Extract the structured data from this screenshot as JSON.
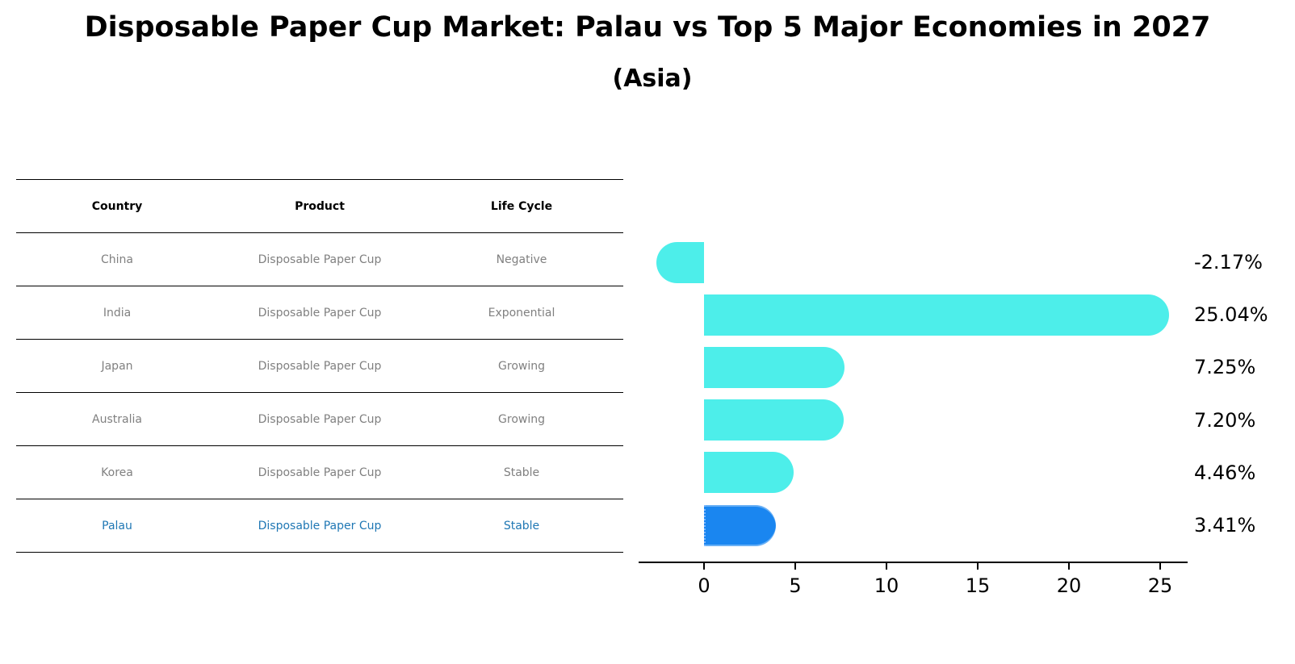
{
  "title": "Disposable Paper Cup Market: Palau vs Top 5 Major Economies in 2027",
  "subtitle": "(Asia)",
  "table": {
    "headers": [
      "Country",
      "Product",
      "Life Cycle"
    ],
    "rows": [
      [
        "China",
        "Disposable Paper Cup",
        "Negative"
      ],
      [
        "India",
        "Disposable Paper Cup",
        "Exponential"
      ],
      [
        "Japan",
        "Disposable Paper Cup",
        "Growing"
      ],
      [
        "Australia",
        "Disposable Paper Cup",
        "Growing"
      ],
      [
        "Korea",
        "Disposable Paper Cup",
        "Stable"
      ],
      [
        "Palau",
        "Disposable Paper Cup",
        "Stable"
      ]
    ],
    "highlight_row": 5,
    "highlight_color": "#1f77b4"
  },
  "chart_data": {
    "type": "bar",
    "orientation": "horizontal",
    "title": "Disposable Paper Cup Market: Palau vs Top 5 Major Economies in 2027",
    "subtitle": "(Asia)",
    "categories": [
      "China",
      "India",
      "Japan",
      "Australia",
      "Korea",
      "Palau"
    ],
    "values": [
      -2.17,
      25.04,
      7.25,
      7.2,
      4.46,
      3.41
    ],
    "value_labels": [
      "-2.17%",
      "25.04%",
      "7.25%",
      "7.20%",
      "4.46%",
      "3.41%"
    ],
    "colors": [
      "#4deeea",
      "#4deeea",
      "#4deeea",
      "#4deeea",
      "#4deeea",
      "#1a86f0"
    ],
    "highlight": "Palau",
    "xticks": [
      0,
      5,
      10,
      15,
      20,
      25
    ],
    "xtick_labels": [
      "0",
      "5",
      "10",
      "15",
      "20",
      "25"
    ],
    "xlim": [
      -3.5,
      26.5
    ],
    "xlabel": "",
    "ylabel": "",
    "grid": false,
    "legend": null
  }
}
